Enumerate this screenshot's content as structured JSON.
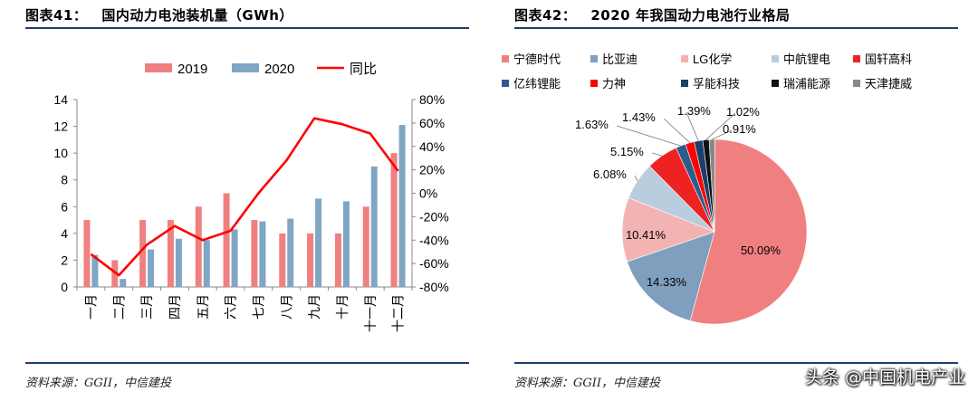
{
  "figure41": {
    "number": "图表41：",
    "title": "国内动力电池装机量（GWh）",
    "source": "资料来源：GGII，中信建投"
  },
  "figure42": {
    "number": "图表42：",
    "title": "2020 年我国动力电池行业格局",
    "source": "资料来源：GGII，中信建投"
  },
  "watermark": "头条 @中国机电产业",
  "colors": {
    "s2019": "#f08080",
    "s2020": "#7fa7c4",
    "yoy": "#ff0000",
    "rule": "#1f3f6e"
  },
  "chart_data": [
    {
      "type": "bar",
      "categories": [
        "一月",
        "二月",
        "三月",
        "四月",
        "五月",
        "六月",
        "七月",
        "八月",
        "九月",
        "十月",
        "十一月",
        "十二月"
      ],
      "series": [
        {
          "name": "2019",
          "type": "bar",
          "axis": "left",
          "color": "#f08080",
          "values": [
            5.0,
            2.0,
            5.0,
            5.0,
            6.0,
            7.0,
            5.0,
            4.0,
            4.0,
            4.0,
            6.0,
            10.0
          ]
        },
        {
          "name": "2020",
          "type": "bar",
          "axis": "left",
          "color": "#7fa7c4",
          "values": [
            2.4,
            0.6,
            2.8,
            3.6,
            3.5,
            4.3,
            4.9,
            5.1,
            6.6,
            6.4,
            9.0,
            12.1
          ]
        },
        {
          "name": "同比",
          "type": "line",
          "axis": "right",
          "color": "#ff0000",
          "values": [
            -52,
            -70,
            -44,
            -28,
            -40,
            -32,
            0,
            28,
            64,
            59,
            51,
            19
          ]
        }
      ],
      "yleft": {
        "min": 0,
        "max": 14,
        "ticks": [
          "0",
          "2",
          "4",
          "6",
          "8",
          "10",
          "12",
          "14"
        ]
      },
      "yright": {
        "min": -80,
        "max": 80,
        "ticks": [
          "-80%",
          "-60%",
          "-40%",
          "-20%",
          "0%",
          "20%",
          "40%",
          "60%",
          "80%"
        ]
      },
      "legend_position": "top"
    },
    {
      "type": "pie",
      "slices": [
        {
          "label": "宁德时代",
          "value": 50.09,
          "display": "50.09%",
          "color": "#f08080"
        },
        {
          "label": "比亚迪",
          "value": 14.33,
          "display": "14.33%",
          "color": "#7f9fbf"
        },
        {
          "label": "LG化学",
          "value": 10.41,
          "display": "10.41%",
          "color": "#f4b3b3"
        },
        {
          "label": "中航锂电",
          "value": 6.08,
          "display": "6.08%",
          "color": "#b8cddd"
        },
        {
          "label": "国轩高科",
          "value": 5.15,
          "display": "5.15%",
          "color": "#ee2222"
        },
        {
          "label": "亿纬锂能",
          "value": 1.63,
          "display": "1.63%",
          "color": "#2e5b8c"
        },
        {
          "label": "力神",
          "value": 1.43,
          "display": "1.43%",
          "color": "#ff0000"
        },
        {
          "label": "孚能科技",
          "value": 1.39,
          "display": "1.39%",
          "color": "#1a3f6a"
        },
        {
          "label": "瑞浦能源",
          "value": 1.02,
          "display": "1.02%",
          "color": "#111111"
        },
        {
          "label": "天津捷威",
          "value": 0.91,
          "display": "0.91%",
          "color": "#888888"
        }
      ],
      "legend_position": "top"
    }
  ]
}
